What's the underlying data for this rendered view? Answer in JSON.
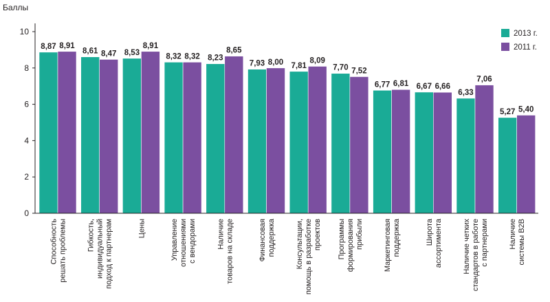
{
  "chart_data": {
    "type": "bar",
    "ylabel": "Баллы",
    "ylim": [
      0,
      10
    ],
    "yticks": [
      0,
      2,
      4,
      6,
      8,
      10
    ],
    "grid": false,
    "legend_position": "top-right",
    "categories": [
      [
        "Способность",
        "решать проблемы"
      ],
      [
        "Гибкость,",
        "индивидуальный",
        "подход к партнерам"
      ],
      [
        "Цены"
      ],
      [
        "Управление",
        "отношениями",
        "с вендорами"
      ],
      [
        "Наличие",
        "товаров на складе"
      ],
      [
        "Финансовая",
        "поддержка"
      ],
      [
        "Консультации,",
        "помощь в разработке",
        "проектов"
      ],
      [
        "Программы",
        "формирования",
        "прибыли"
      ],
      [
        "Маркетинговая",
        "поддержка"
      ],
      [
        "Широта",
        "ассортимента"
      ],
      [
        "Наличие четких",
        "стандартов в работе",
        "с партнерами"
      ],
      [
        "Наличие",
        "системы B2B"
      ]
    ],
    "series": [
      {
        "name": "2013 г.",
        "color": "#1aab96",
        "values": [
          8.87,
          8.61,
          8.53,
          8.32,
          8.23,
          7.93,
          7.81,
          7.7,
          6.77,
          6.67,
          6.33,
          5.27
        ],
        "labels": [
          "8,87",
          "8,61",
          "8,53",
          "8,32",
          "8,23",
          "7,93",
          "7,81",
          "7,70",
          "6,77",
          "6,67",
          "6,33",
          "5,27"
        ]
      },
      {
        "name": "2011 г.",
        "color": "#7b4fa0",
        "values": [
          8.91,
          8.47,
          8.91,
          8.32,
          8.65,
          8.0,
          8.09,
          7.52,
          6.81,
          6.66,
          7.06,
          5.4
        ],
        "labels": [
          "8,91",
          "8,47",
          "8,91",
          "8,32",
          "8,65",
          "8,00",
          "8,09",
          "7,52",
          "6,81",
          "6,66",
          "7,06",
          "5,40"
        ]
      }
    ]
  }
}
